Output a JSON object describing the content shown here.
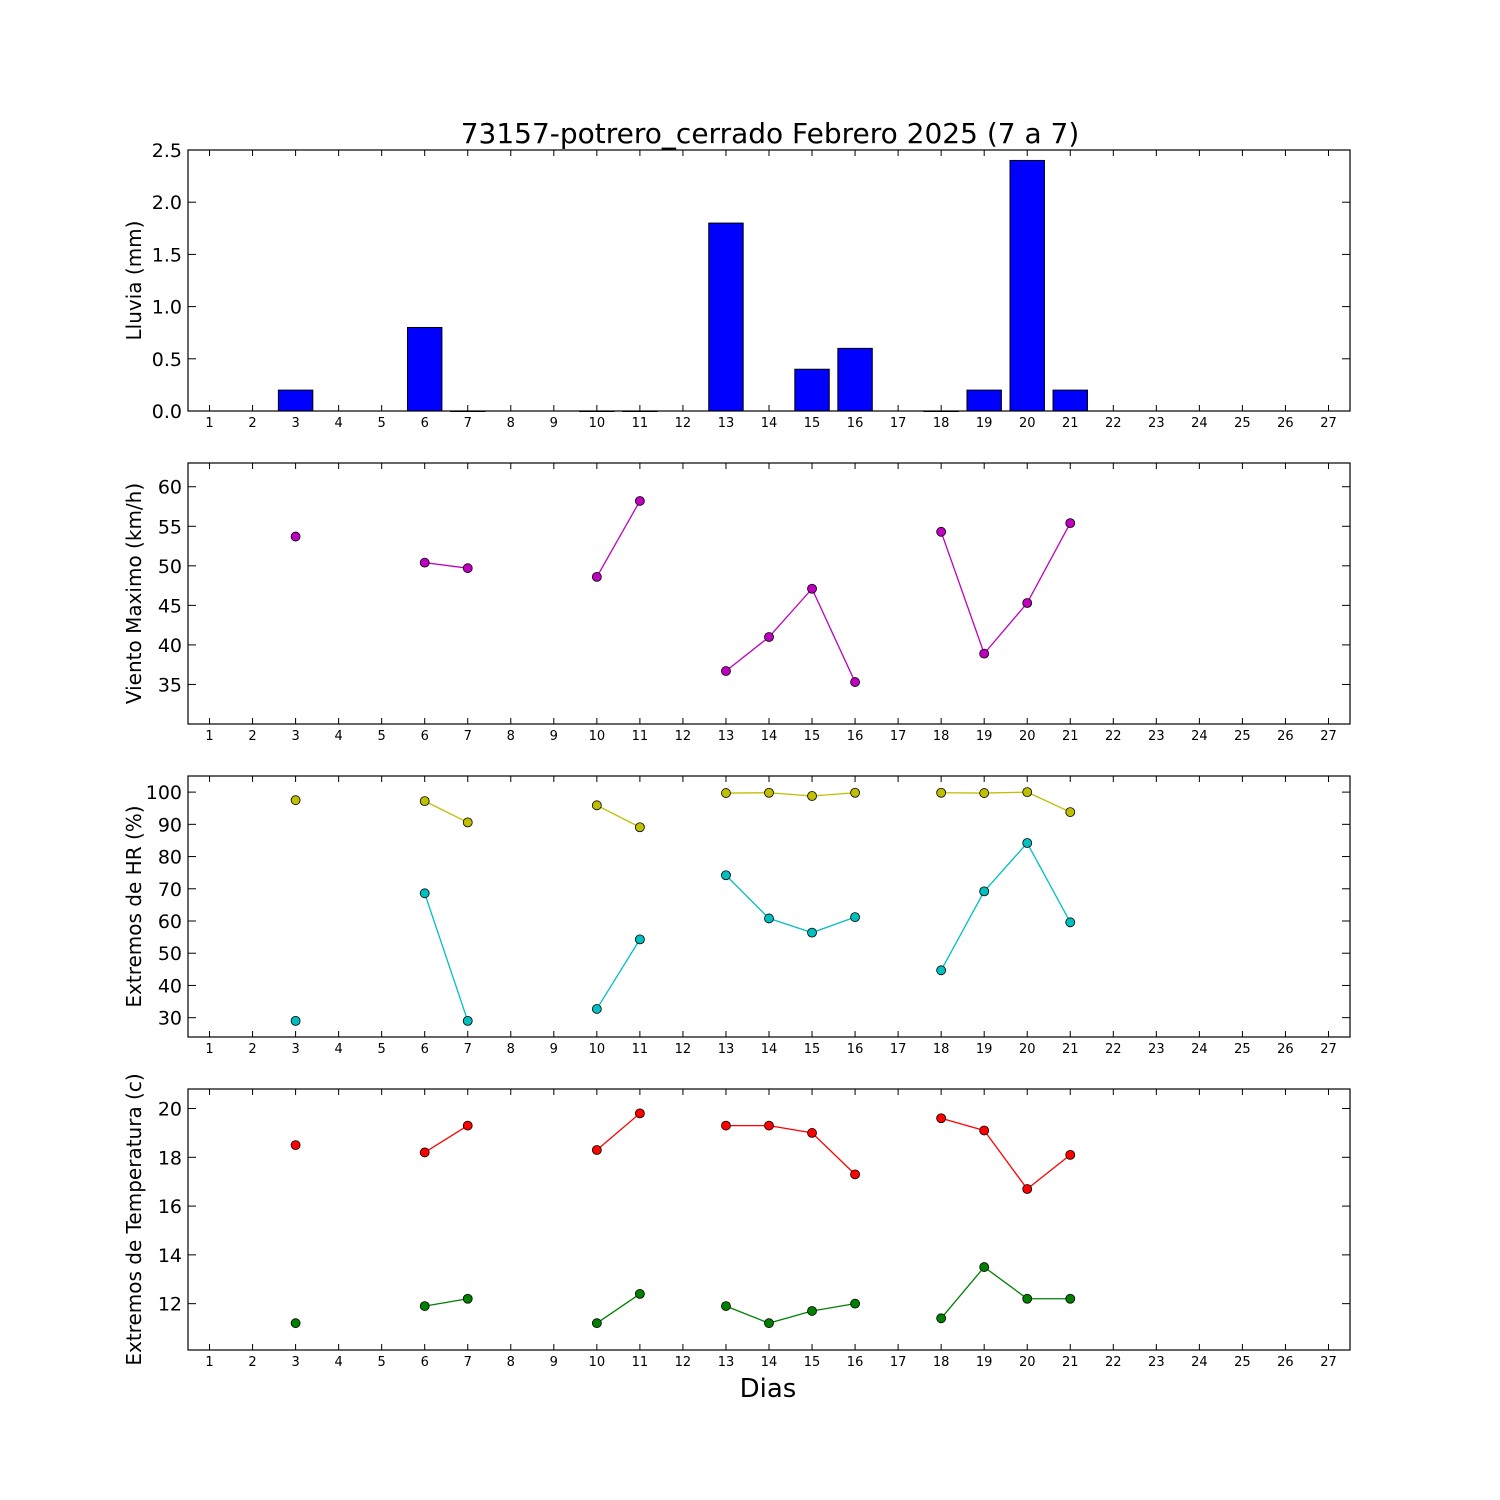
{
  "title": "73157-potrero_cerrado Febrero 2025  (7 a 7)",
  "xlabel": "Dias",
  "colors": {
    "bar": "#0000ff",
    "wind": "#bf00bf",
    "hr_max": "#bfbf00",
    "hr_min": "#00bfbf",
    "t_max": "#ff0000",
    "t_min": "#008000"
  },
  "chart_data": [
    {
      "type": "bar",
      "ylabel": "Lluvia (mm)",
      "xlim": [
        0.5,
        27.5
      ],
      "ylim": [
        0,
        2.5
      ],
      "yticks": [
        "0.0",
        "0.5",
        "1.0",
        "1.5",
        "2.0",
        "2.5"
      ],
      "xticks": [
        1,
        2,
        3,
        4,
        5,
        6,
        7,
        8,
        9,
        10,
        11,
        12,
        13,
        14,
        15,
        16,
        17,
        18,
        19,
        20,
        21,
        22,
        23,
        24,
        25,
        26,
        27
      ],
      "series": [
        {
          "x": [
            3,
            6,
            7,
            10,
            11,
            13,
            15,
            16,
            18,
            19,
            20,
            21
          ],
          "values": [
            0.2,
            0.8,
            0.0,
            0.0,
            0.0,
            1.8,
            0.4,
            0.6,
            0.0,
            0.2,
            2.4,
            0.2
          ],
          "color": "#0000ff"
        }
      ]
    },
    {
      "type": "line",
      "ylabel": "Viento Maximo (km/h)",
      "xlim": [
        0.5,
        27.5
      ],
      "ylim": [
        30,
        63
      ],
      "yticks": [
        "35",
        "40",
        "45",
        "50",
        "55",
        "60"
      ],
      "xticks": [
        1,
        2,
        3,
        4,
        5,
        6,
        7,
        8,
        9,
        10,
        11,
        12,
        13,
        14,
        15,
        16,
        17,
        18,
        19,
        20,
        21,
        22,
        23,
        24,
        25,
        26,
        27
      ],
      "series": [
        {
          "x": [
            3,
            4,
            5,
            6,
            7,
            8,
            9,
            10,
            11,
            12,
            13,
            14,
            15,
            16,
            17,
            18,
            19,
            20,
            21
          ],
          "values": [
            53.7,
            null,
            null,
            50.4,
            49.7,
            null,
            null,
            48.6,
            58.2,
            null,
            36.7,
            41.0,
            47.1,
            35.3,
            null,
            54.3,
            38.9,
            45.3,
            55.4
          ],
          "color": "#bf00bf"
        }
      ]
    },
    {
      "type": "line",
      "ylabel": "Extremos de HR (%)",
      "xlim": [
        0.5,
        27.5
      ],
      "ylim": [
        24,
        105
      ],
      "yticks": [
        "30",
        "40",
        "50",
        "60",
        "70",
        "80",
        "90",
        "100"
      ],
      "xticks": [
        1,
        2,
        3,
        4,
        5,
        6,
        7,
        8,
        9,
        10,
        11,
        12,
        13,
        14,
        15,
        16,
        17,
        18,
        19,
        20,
        21,
        22,
        23,
        24,
        25,
        26,
        27
      ],
      "series": [
        {
          "x": [
            3,
            4,
            5,
            6,
            7,
            8,
            9,
            10,
            11,
            12,
            13,
            14,
            15,
            16,
            17,
            18,
            19,
            20,
            21
          ],
          "values": [
            97.5,
            null,
            null,
            97.2,
            90.6,
            null,
            null,
            95.9,
            89.1,
            null,
            99.7,
            99.8,
            98.8,
            99.8,
            null,
            99.8,
            99.7,
            100.0,
            93.8
          ],
          "color": "#bfbf00"
        },
        {
          "x": [
            3,
            4,
            5,
            6,
            7,
            8,
            9,
            10,
            11,
            12,
            13,
            14,
            15,
            16,
            17,
            18,
            19,
            20,
            21
          ],
          "values": [
            29.0,
            null,
            null,
            68.6,
            29.0,
            null,
            null,
            32.7,
            54.3,
            null,
            74.2,
            60.8,
            56.4,
            61.2,
            null,
            44.7,
            69.2,
            84.2,
            59.6
          ],
          "color": "#00bfbf"
        }
      ]
    },
    {
      "type": "line",
      "ylabel": "Extremos de Temperatura (c)",
      "xlim": [
        0.5,
        27.5
      ],
      "ylim": [
        10.1,
        20.8
      ],
      "yticks": [
        "12",
        "14",
        "16",
        "18",
        "20"
      ],
      "xticks": [
        1,
        2,
        3,
        4,
        5,
        6,
        7,
        8,
        9,
        10,
        11,
        12,
        13,
        14,
        15,
        16,
        17,
        18,
        19,
        20,
        21,
        22,
        23,
        24,
        25,
        26,
        27
      ],
      "series": [
        {
          "x": [
            3,
            4,
            5,
            6,
            7,
            8,
            9,
            10,
            11,
            12,
            13,
            14,
            15,
            16,
            17,
            18,
            19,
            20,
            21
          ],
          "values": [
            18.5,
            null,
            null,
            18.2,
            19.3,
            null,
            null,
            18.3,
            19.8,
            null,
            19.3,
            19.3,
            19.0,
            17.3,
            null,
            19.6,
            19.1,
            16.7,
            18.1
          ],
          "color": "#ff0000"
        },
        {
          "x": [
            3,
            4,
            5,
            6,
            7,
            8,
            9,
            10,
            11,
            12,
            13,
            14,
            15,
            16,
            17,
            18,
            19,
            20,
            21
          ],
          "values": [
            11.2,
            null,
            null,
            11.9,
            12.2,
            null,
            null,
            11.2,
            12.4,
            null,
            11.9,
            11.2,
            11.7,
            12.0,
            null,
            11.4,
            13.5,
            12.2,
            12.2
          ],
          "color": "#008000"
        }
      ]
    }
  ]
}
